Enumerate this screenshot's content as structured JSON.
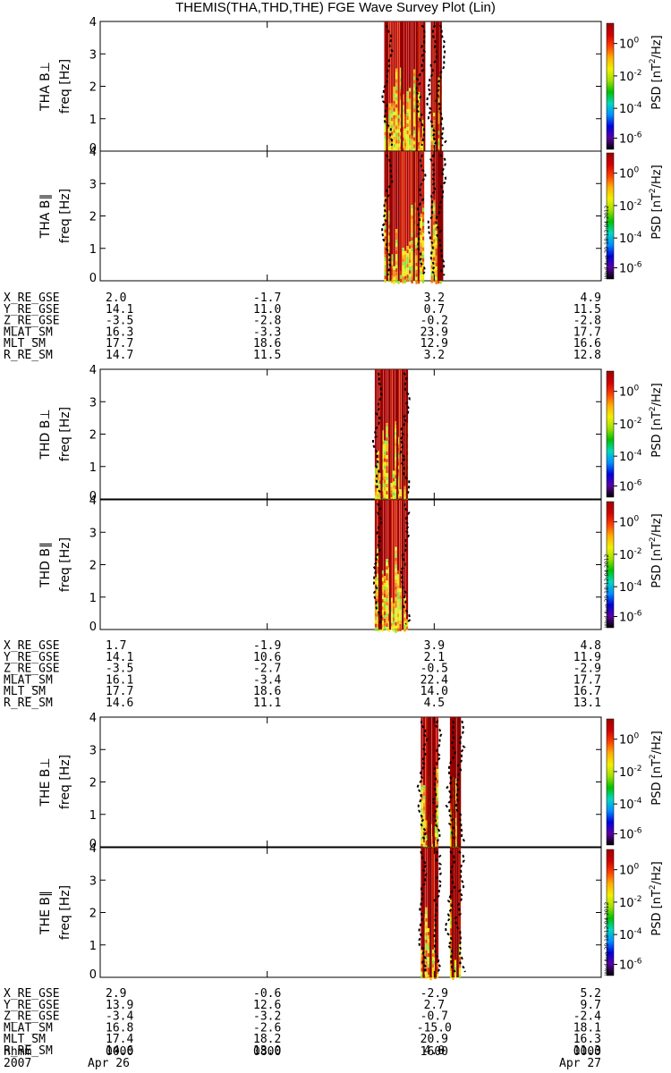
{
  "title": "THEMIS(THA,THD,THE) FGE Wave Survey Plot (Lin)",
  "colors": {
    "axis": "#000000",
    "wave_fill": [
      "#a80000",
      "#cc1a00",
      "#e04000",
      "#f07800",
      "#f4b000",
      "#fbe600",
      "#d8f020",
      "#90e030"
    ],
    "curve": "#000000"
  },
  "colorbar": {
    "label": "PSD [nT",
    "label_sup": "2",
    "label_tail": "/Hz]",
    "ticks": [
      {
        "base": "10",
        "exp": "0"
      },
      {
        "base": "10",
        "exp": "-2"
      },
      {
        "base": "10",
        "exp": "-4"
      },
      {
        "base": "10",
        "exp": "-6"
      }
    ],
    "stops": [
      "#000000",
      "#5a00a0",
      "#0000e0",
      "#0090ff",
      "#00d8c0",
      "#00c000",
      "#a0e000",
      "#f0f000",
      "#ffb000",
      "#ff4000",
      "#d00000",
      "#a00000"
    ]
  },
  "stamp_text": "Wed Aug 29 18:12:04 2012",
  "probes": [
    {
      "id": "THA",
      "panels": [
        {
          "probe": "THA",
          "comp": "B⊥",
          "ylabel": "freq [Hz]"
        },
        {
          "probe": "THA",
          "comp": "B∥",
          "ylabel": "freq [Hz]"
        }
      ],
      "ephemeris": [
        {
          "name": "X_RE_GSE",
          "values": [
            "2.0",
            "-1.7",
            "3.2",
            "4.9"
          ]
        },
        {
          "name": "Y_RE_GSE",
          "values": [
            "14.1",
            "11.0",
            "0.7",
            "11.5"
          ]
        },
        {
          "name": "Z_RE_GSE",
          "values": [
            "-3.5",
            "-2.8",
            "-0.2",
            "-2.8"
          ]
        },
        {
          "name": "MLAT_SM",
          "values": [
            "16.3",
            "-3.3",
            "23.9",
            "17.7"
          ]
        },
        {
          "name": "MLT_SM",
          "values": [
            "17.7",
            "18.6",
            "12.9",
            "16.6"
          ]
        },
        {
          "name": "R_RE_SM",
          "values": [
            "14.7",
            "11.5",
            "3.2",
            "12.8"
          ]
        }
      ],
      "active_intervals": [
        [
          0.567,
          0.646
        ],
        [
          0.66,
          0.682
        ]
      ]
    },
    {
      "id": "THD",
      "panels": [
        {
          "probe": "THD",
          "comp": "B⊥",
          "ylabel": "freq [Hz]"
        },
        {
          "probe": "THD",
          "comp": "B∥",
          "ylabel": "freq [Hz]"
        }
      ],
      "ephemeris": [
        {
          "name": "X_RE_GSE",
          "values": [
            "1.7",
            "-1.9",
            "3.9",
            "4.8"
          ]
        },
        {
          "name": "Y_RE_GSE",
          "values": [
            "14.1",
            "10.6",
            "2.1",
            "11.9"
          ]
        },
        {
          "name": "Z_RE_GSE",
          "values": [
            "-3.5",
            "-2.7",
            "-0.5",
            "-2.9"
          ]
        },
        {
          "name": "MLAT_SM",
          "values": [
            "16.1",
            "-3.4",
            "22.4",
            "17.7"
          ]
        },
        {
          "name": "MLT_SM",
          "values": [
            "17.7",
            "18.6",
            "14.0",
            "16.7"
          ]
        },
        {
          "name": "R_RE_SM",
          "values": [
            "14.6",
            "11.1",
            "4.5",
            "13.1"
          ]
        }
      ],
      "active_intervals": [
        [
          0.548,
          0.614
        ]
      ]
    },
    {
      "id": "THE",
      "panels": [
        {
          "probe": "THE",
          "comp": "B⊥",
          "ylabel": "freq [Hz]"
        },
        {
          "probe": "THE",
          "comp": "B∥",
          "ylabel": "freq [Hz]"
        }
      ],
      "ephemeris": [
        {
          "name": "X_RE_GSE",
          "values": [
            "2.9",
            "-0.6",
            "-2.9",
            "5.2"
          ]
        },
        {
          "name": "Y_RE_GSE",
          "values": [
            "13.9",
            "12.6",
            "2.7",
            "9.7"
          ]
        },
        {
          "name": "Z_RE_GSE",
          "values": [
            "-3.4",
            "-3.2",
            "-0.7",
            "-2.4"
          ]
        },
        {
          "name": "MLAT_SM",
          "values": [
            "16.8",
            "-2.6",
            "-15.0",
            "18.1"
          ]
        },
        {
          "name": "MLT_SM",
          "values": [
            "17.4",
            "18.2",
            "20.9",
            "16.3"
          ]
        },
        {
          "name": "R_RE_SM",
          "values": [
            "14.6",
            "13.0",
            "4.0",
            "11.3"
          ]
        }
      ],
      "active_intervals": [
        [
          0.64,
          0.674
        ],
        [
          0.698,
          0.72
        ]
      ]
    }
  ],
  "time_axis": {
    "row1_label": "hhmm",
    "row2_label": "2007",
    "ticks": [
      {
        "hhmm": "0000",
        "date": "Apr 26"
      },
      {
        "hhmm": "0800",
        "date": ""
      },
      {
        "hhmm": "1600",
        "date": ""
      },
      {
        "hhmm": "0000",
        "date": "Apr 27"
      }
    ]
  },
  "chart_data": {
    "type": "heatmap",
    "title": "THEMIS(THA,THD,THE) FGE Wave Survey Plot (Lin)",
    "xlabel": "hhmm",
    "ylabel": "freq [Hz]",
    "x_ticks": [
      "0000",
      "0800",
      "1600",
      "0000"
    ],
    "y_range": [
      0,
      4
    ],
    "y_ticks": [
      0,
      1,
      2,
      3,
      4
    ],
    "colorbar_label": "PSD [nT^2/Hz]",
    "colorbar_scale": "log",
    "colorbar_ticks": [
      1,
      0.01,
      0.0001,
      1e-06
    ],
    "series": [
      {
        "name": "THA B⊥"
      },
      {
        "name": "THA B∥"
      },
      {
        "name": "THD B⊥"
      },
      {
        "name": "THD B∥"
      },
      {
        "name": "THE B⊥"
      },
      {
        "name": "THE B∥"
      }
    ]
  }
}
